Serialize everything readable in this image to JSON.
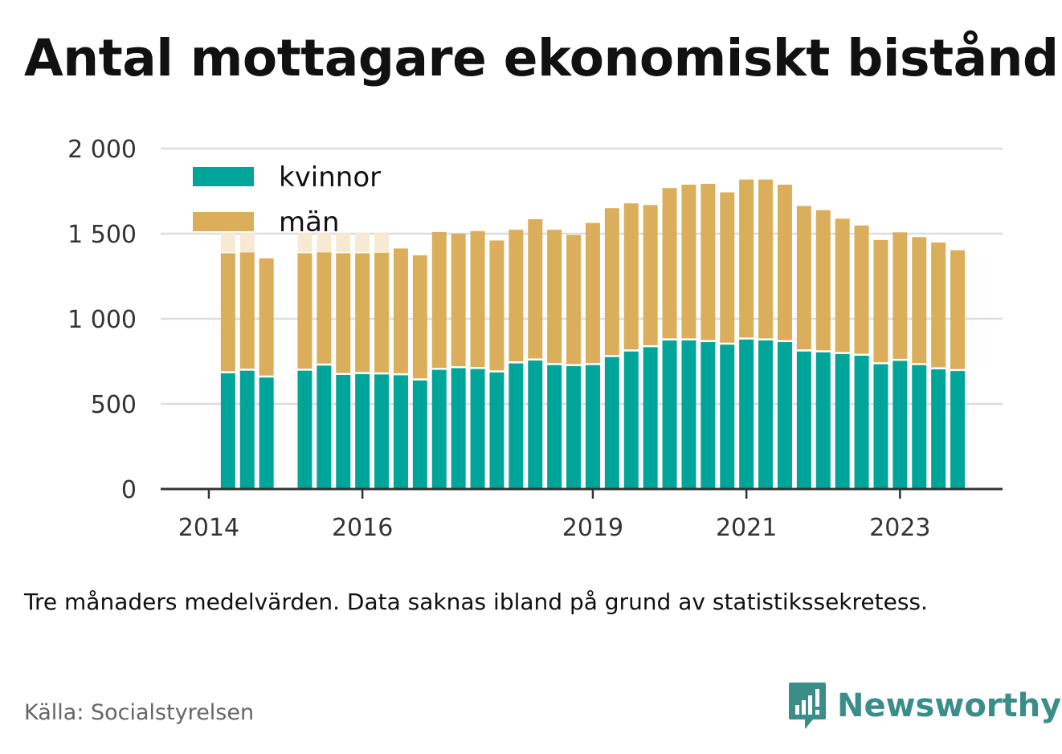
{
  "title": "Antal mottagare ekonomiskt bistånd",
  "note": "Tre månaders medelvärden. Data saknas ibland på grund av statistikssekretess.",
  "source": "Källa: Socialstyrelsen",
  "brand": {
    "name": "Newsworthy",
    "icon": "newsworthy-logo-icon",
    "color": "#3a8d89"
  },
  "colors": {
    "kvinnor": "#00a59a",
    "man": "#dbae5c",
    "grid": "#dddddd",
    "axis": "#333333"
  },
  "chart_data": {
    "type": "bar",
    "stacked": true,
    "ylim": [
      0,
      2000
    ],
    "yticks": [
      0,
      500,
      1000,
      1500,
      2000
    ],
    "ytick_labels": [
      "0",
      "500",
      "1 000",
      "1 500",
      "2 000"
    ],
    "xticks": [
      {
        "label": "2014",
        "index": 0
      },
      {
        "label": "2016",
        "index": 8
      },
      {
        "label": "2019",
        "index": 20
      },
      {
        "label": "2021",
        "index": 28
      },
      {
        "label": "2023",
        "index": 36
      }
    ],
    "legend": {
      "placement": "top-left"
    },
    "series": [
      {
        "name": "kvinnor",
        "values": [
          null,
          680,
          695,
          655,
          null,
          695,
          725,
          670,
          675,
          673,
          668,
          638,
          700,
          710,
          705,
          685,
          738,
          755,
          728,
          722,
          728,
          775,
          808,
          833,
          873,
          873,
          863,
          848,
          878,
          873,
          863,
          808,
          803,
          793,
          783,
          733,
          753,
          728,
          703,
          693
        ]
      },
      {
        "name": "män",
        "values": [
          null,
          705,
          695,
          700,
          null,
          690,
          665,
          715,
          710,
          715,
          745,
          735,
          810,
          790,
          810,
          775,
          785,
          830,
          795,
          770,
          835,
          875,
          870,
          835,
          895,
          915,
          930,
          895,
          940,
          945,
          925,
          855,
          835,
          795,
          765,
          730,
          755,
          752,
          745,
          710
        ]
      }
    ],
    "missing_markers": [
      1,
      2,
      5,
      6,
      7,
      8,
      9
    ]
  }
}
